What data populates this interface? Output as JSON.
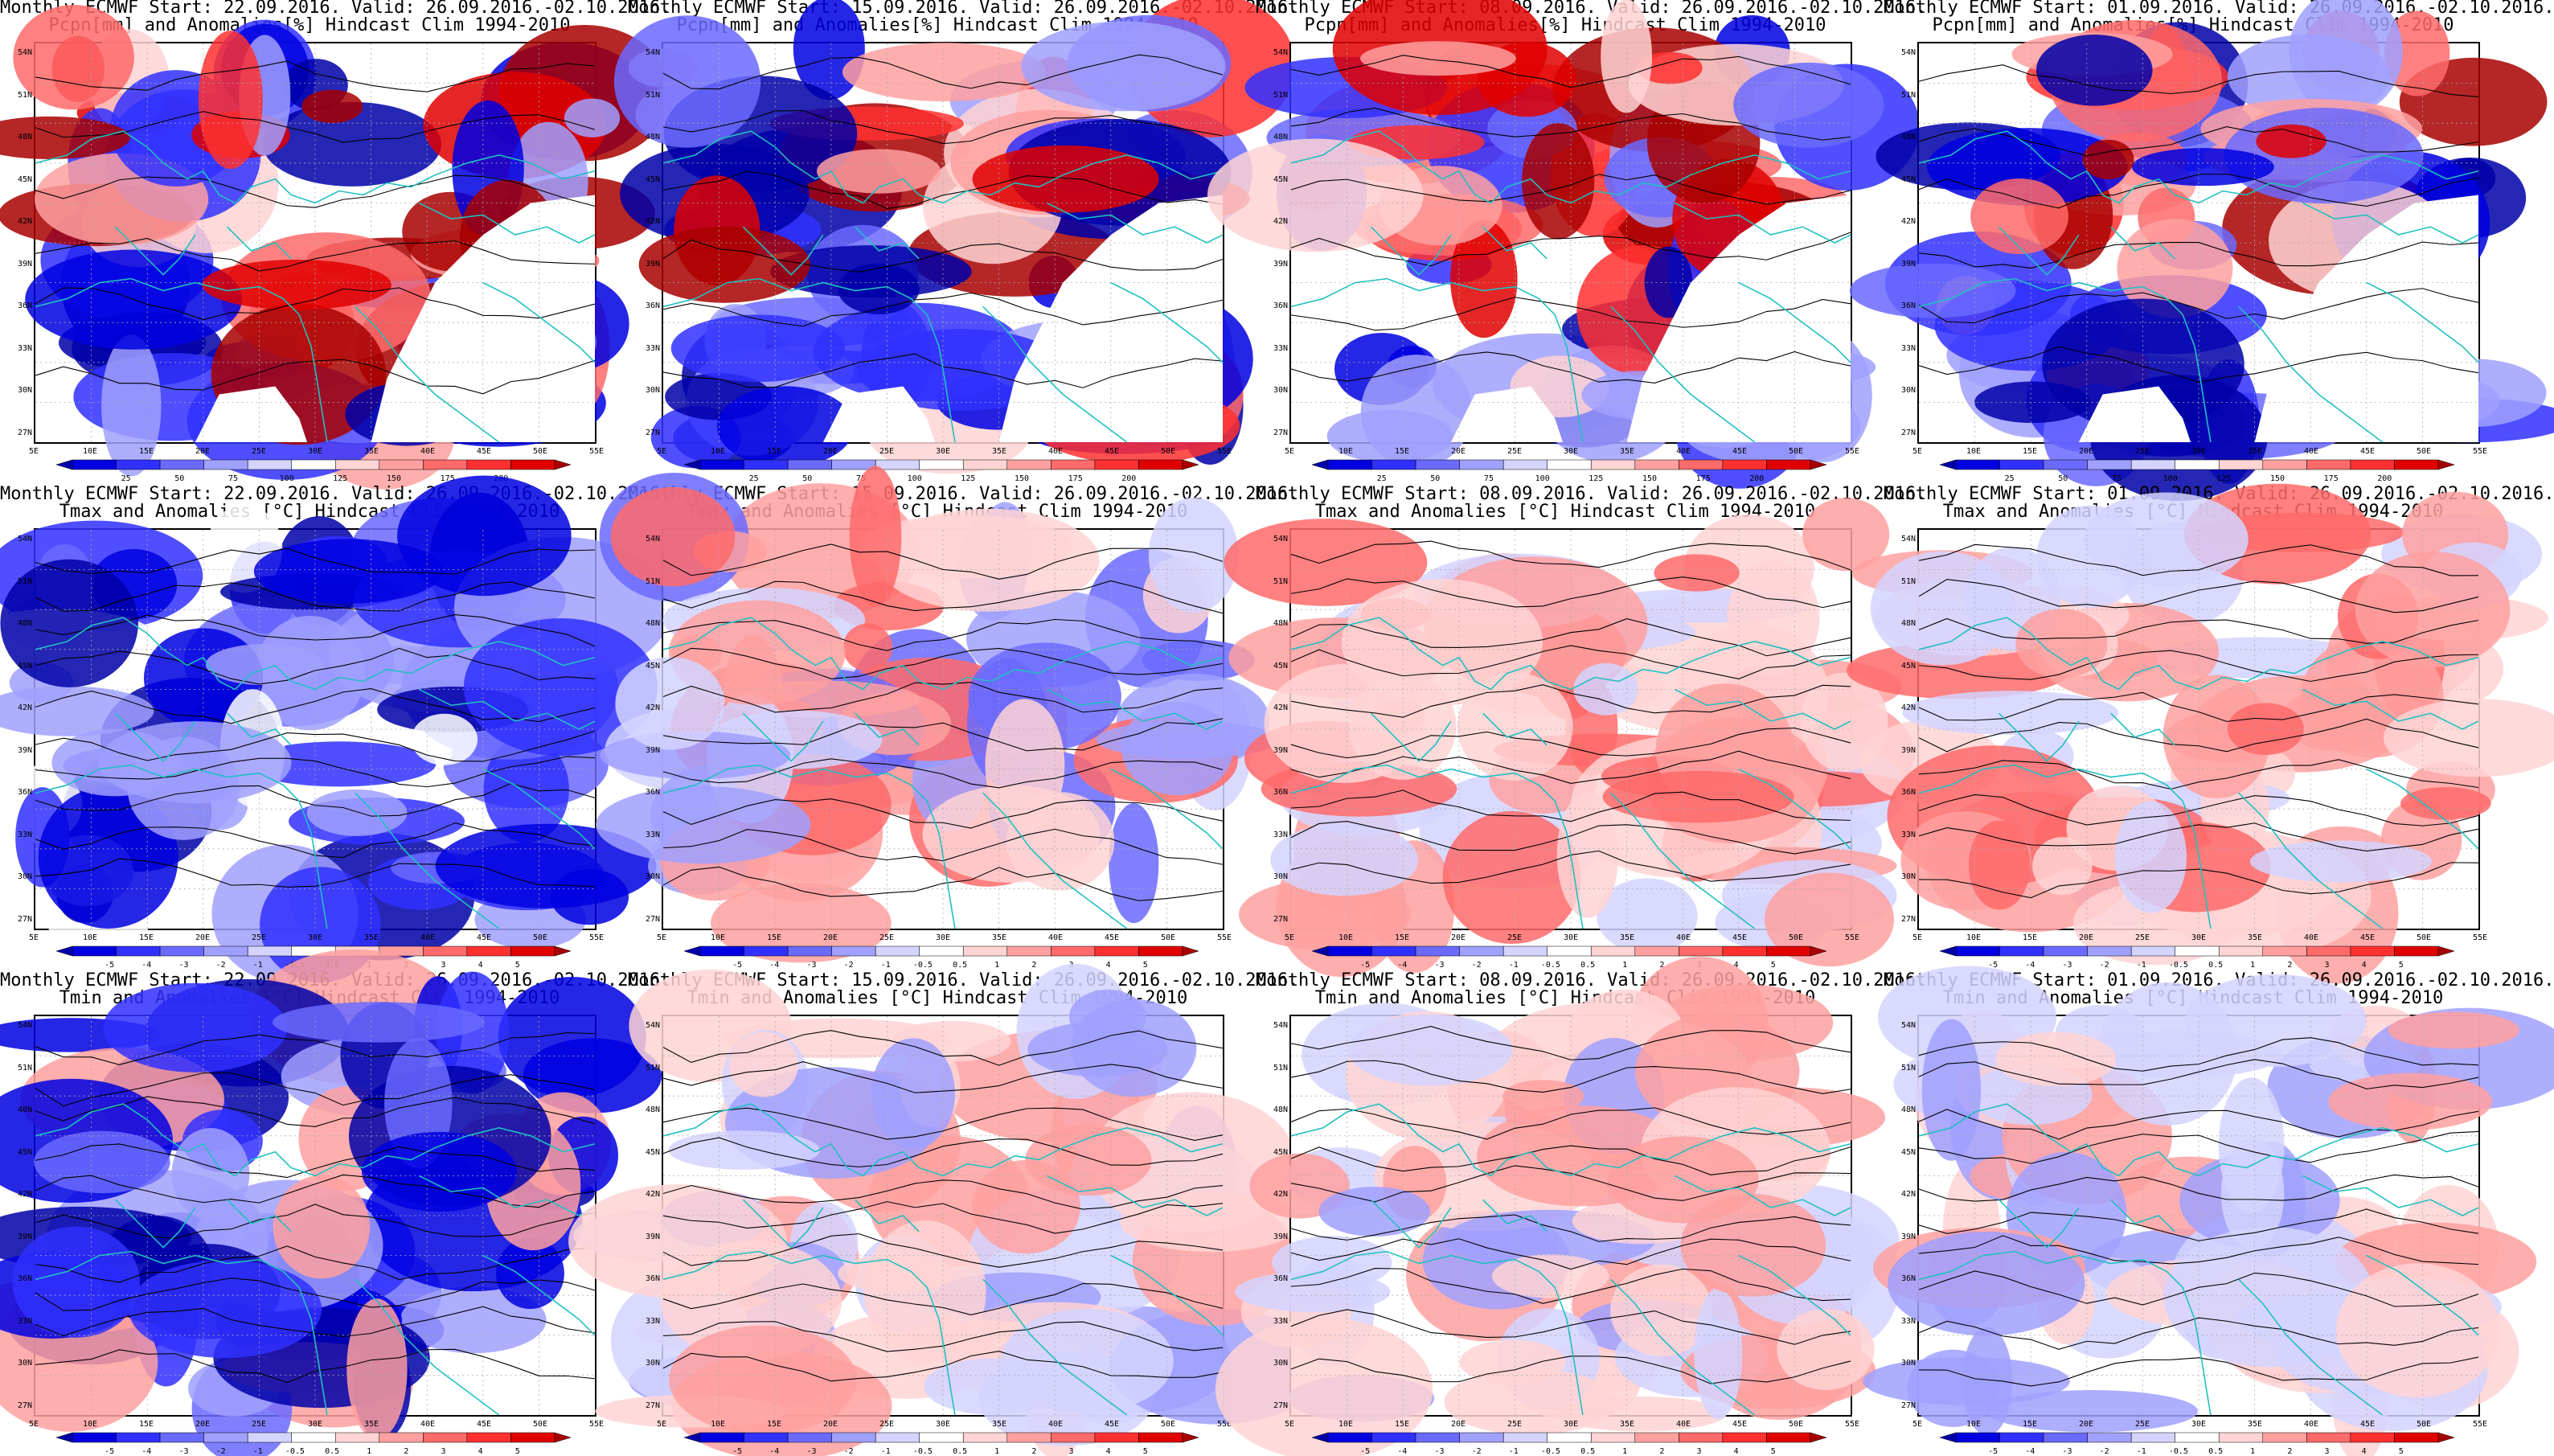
{
  "rows": [
    {
      "variable": "Pcpn[mm] and Anomalies[%] Hindcast Clim 1994-2010",
      "colorbar_labels": [
        "25",
        "50",
        "75",
        "100",
        "125",
        "150",
        "175",
        "200"
      ],
      "colorbar_colors": [
        "#0000a8",
        "#0000e0",
        "#3030ff",
        "#6a6aff",
        "#a0a0ff",
        "#d4d4ff",
        "#ffffff",
        "#ffd4d4",
        "#ffa0a0",
        "#ff6a6a",
        "#ff3030",
        "#e00000",
        "#a80000"
      ]
    },
    {
      "variable": "Tmax and Anomalies [°C] Hindcast Clim 1994-2010",
      "colorbar_labels": [
        "-5",
        "-4",
        "-3",
        "-2",
        "-1",
        "-0.5",
        "0.5",
        "1",
        "2",
        "3",
        "4",
        "5"
      ],
      "colorbar_colors": [
        "#0000a8",
        "#0000e0",
        "#3030ff",
        "#6a6aff",
        "#a0a0ff",
        "#d4d4ff",
        "#ffffff",
        "#ffd4d4",
        "#ffa0a0",
        "#ff6a6a",
        "#ff3030",
        "#e00000",
        "#a80000"
      ]
    },
    {
      "variable": "Tmin and Anomalies [°C] Hindcast Clim 1994-2010",
      "colorbar_labels": [
        "-5",
        "-4",
        "-3",
        "-2",
        "-1",
        "-0.5",
        "0.5",
        "1",
        "2",
        "3",
        "4",
        "5"
      ],
      "colorbar_colors": [
        "#0000a8",
        "#0000e0",
        "#3030ff",
        "#6a6aff",
        "#a0a0ff",
        "#d4d4ff",
        "#ffffff",
        "#ffd4d4",
        "#ffa0a0",
        "#ff6a6a",
        "#ff3030",
        "#e00000",
        "#a80000"
      ]
    }
  ],
  "columns": [
    {
      "header": "Monthly ECMWF Start: 22.09.2016. Valid: 26.09.2016.-02.10.2016."
    },
    {
      "header": "Monthly ECMWF Start: 15.09.2016. Valid: 26.09.2016.-02.10.2016."
    },
    {
      "header": "Monthly ECMWF Start: 08.09.2016. Valid: 26.09.2016.-02.10.2016."
    },
    {
      "header": "Monthly ECMWF Start: 01.09.2016. Valid: 26.09.2016.-02.10.2016."
    }
  ],
  "lat_labels": [
    "54N",
    "51N",
    "48N",
    "45N",
    "42N",
    "39N",
    "36N",
    "33N",
    "30N",
    "27N"
  ],
  "lon_labels": [
    "5E",
    "10E",
    "15E",
    "20E",
    "25E",
    "30E",
    "35E",
    "40E",
    "45E",
    "50E",
    "55E"
  ],
  "coastline_color": "#20c0c0",
  "contour_color": "#000000"
}
